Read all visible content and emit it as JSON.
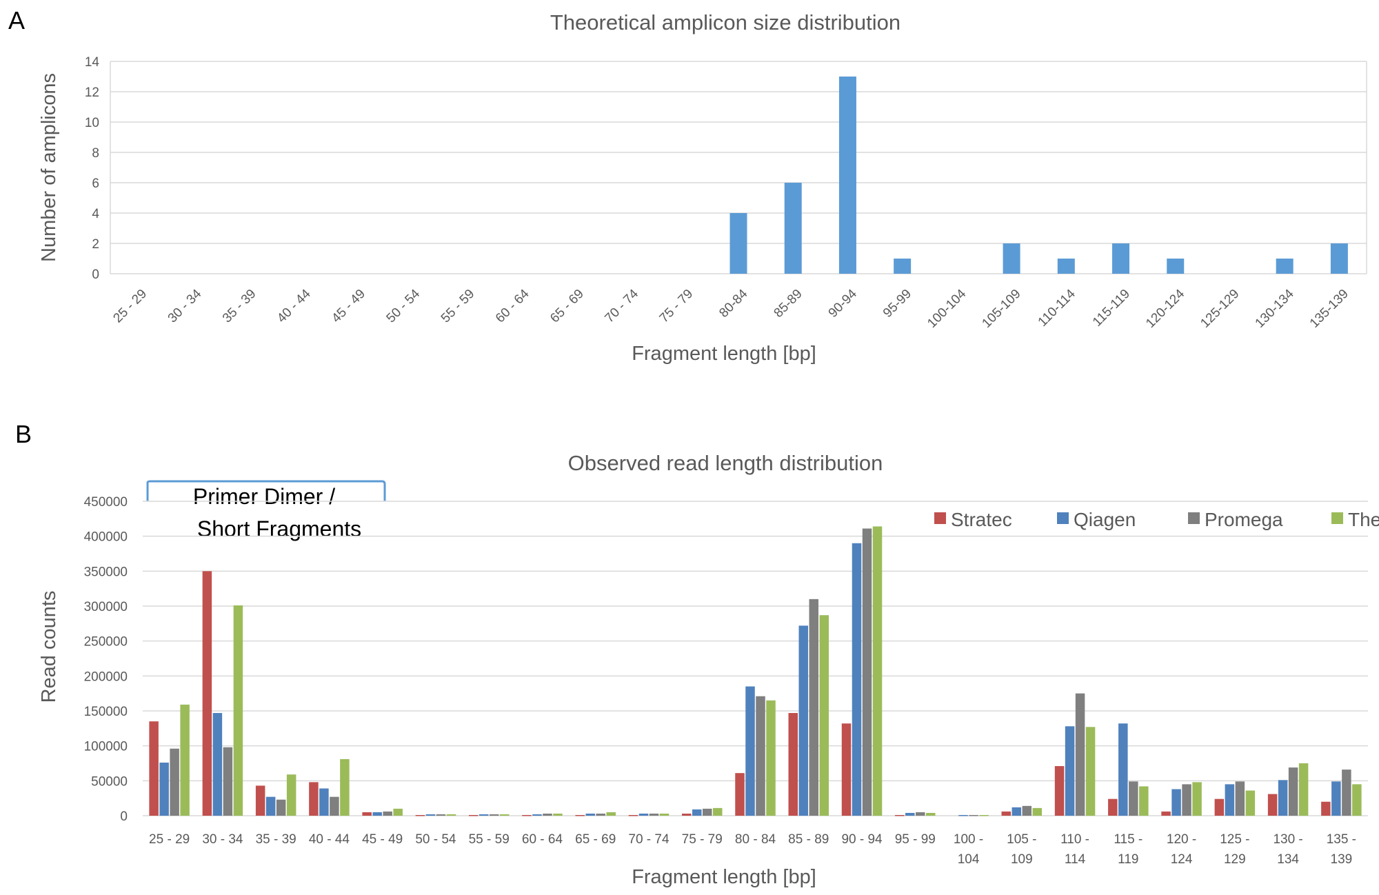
{
  "panels": {
    "a": "A",
    "b": "B"
  },
  "chart_data": [
    {
      "type": "bar",
      "title": "Theoretical amplicon size distribution",
      "xlabel": "Fragment  length [bp]",
      "ylabel": "Number of amplicons",
      "ylim": [
        0,
        14
      ],
      "yticks": [
        0,
        2,
        4,
        6,
        8,
        10,
        12,
        14
      ],
      "grid": true,
      "color": "#5b9bd5",
      "categories": [
        "25 - 29",
        "30 - 34",
        "35 - 39",
        "40 - 44",
        "45 - 49",
        "50 - 54",
        "55 - 59",
        "60 - 64",
        "65 - 69",
        "70 - 74",
        "75 - 79",
        "80-84",
        "85-89",
        "90-94",
        "95-99",
        "100-104",
        "105-109",
        "110-114",
        "115-119",
        "120-124",
        "125-129",
        "130-134",
        "135-139"
      ],
      "values": [
        0,
        0,
        0,
        0,
        0,
        0,
        0,
        0,
        0,
        0,
        0,
        4,
        6,
        13,
        1,
        0,
        2,
        1,
        2,
        1,
        0,
        1,
        2
      ]
    },
    {
      "type": "bar",
      "title": "Observed read length distribution",
      "xlabel": "Fragment  length [bp]",
      "ylabel": "Read counts",
      "ylim": [
        0,
        450000
      ],
      "yticks": [
        0,
        50000,
        100000,
        150000,
        200000,
        250000,
        300000,
        350000,
        400000,
        450000
      ],
      "grid": true,
      "legend_position": "top-right",
      "annotation": {
        "line1": "Primer Dimer /",
        "line2": "Short Fragments",
        "bracket_color": "#5b9bd5",
        "range": [
          "25 - 29",
          "45 - 49"
        ]
      },
      "categories": [
        [
          "25 - 29"
        ],
        [
          "30 - 34"
        ],
        [
          "35 - 39"
        ],
        [
          "40 - 44"
        ],
        [
          "45 - 49"
        ],
        [
          "50 - 54"
        ],
        [
          "55 - 59"
        ],
        [
          "60 - 64"
        ],
        [
          "65 - 69"
        ],
        [
          "70 - 74"
        ],
        [
          "75 - 79"
        ],
        [
          "80 - 84"
        ],
        [
          "85 - 89"
        ],
        [
          "90 - 94"
        ],
        [
          "95 - 99"
        ],
        [
          "100 -",
          "104"
        ],
        [
          "105 -",
          "109"
        ],
        [
          "110 -",
          "114"
        ],
        [
          "115 -",
          "119"
        ],
        [
          "120 -",
          "124"
        ],
        [
          "125 -",
          "129"
        ],
        [
          "130 -",
          "134"
        ],
        [
          "135 -",
          "139"
        ]
      ],
      "series": [
        {
          "name": "Stratec",
          "color": "#c0504d",
          "values": [
            135000,
            350000,
            43000,
            48000,
            5000,
            1000,
            1000,
            1000,
            1000,
            1000,
            3000,
            61000,
            147000,
            132000,
            1000,
            0,
            6000,
            71000,
            24000,
            6000,
            24000,
            31000,
            20000
          ]
        },
        {
          "name": "Qiagen",
          "color": "#4f81bd",
          "values": [
            76000,
            147000,
            27000,
            39000,
            5000,
            2000,
            2000,
            2000,
            3000,
            3000,
            9000,
            185000,
            272000,
            390000,
            4000,
            1000,
            12000,
            128000,
            132000,
            38000,
            45000,
            51000,
            49000
          ]
        },
        {
          "name": "Promega",
          "color": "#7f7f7f",
          "values": [
            96000,
            98000,
            23000,
            27000,
            6000,
            2000,
            2000,
            3000,
            3000,
            3000,
            10000,
            171000,
            310000,
            411000,
            5000,
            1000,
            14000,
            175000,
            49000,
            45000,
            49000,
            69000,
            66000
          ]
        },
        {
          "name": "Thermo",
          "color": "#9bbb59",
          "values": [
            159000,
            301000,
            59000,
            81000,
            10000,
            2000,
            2000,
            3000,
            5000,
            3000,
            11000,
            165000,
            287000,
            414000,
            4000,
            1000,
            11000,
            127000,
            42000,
            48000,
            36000,
            75000,
            45000
          ]
        }
      ]
    }
  ]
}
